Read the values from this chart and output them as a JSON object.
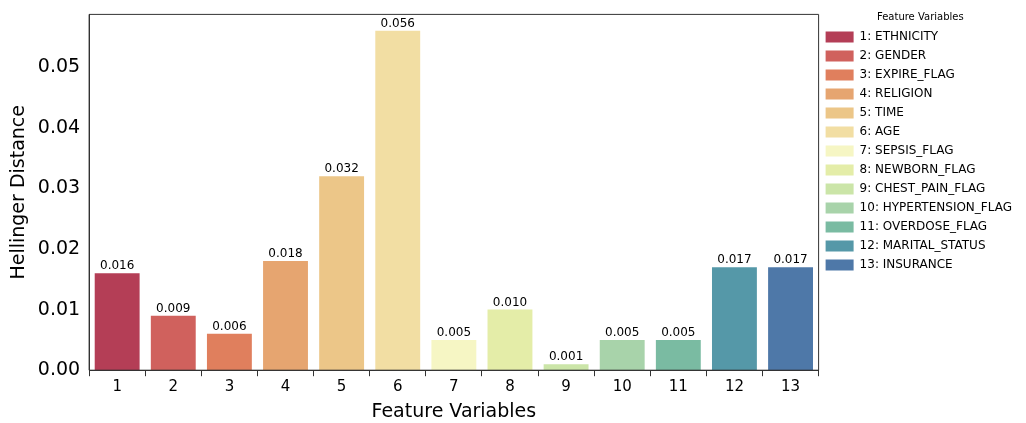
{
  "chart_data": {
    "type": "bar",
    "xlabel": "Feature Variables",
    "ylabel": "Hellinger Distance",
    "legend_title": "Feature Variables",
    "categories": [
      "1",
      "2",
      "3",
      "4",
      "5",
      "6",
      "7",
      "8",
      "9",
      "10",
      "11",
      "12",
      "13"
    ],
    "series": [
      {
        "name": "1: ETHNICITY",
        "color": "#b43e56",
        "values": [
          0.016,
          null,
          null,
          null,
          null,
          null,
          null,
          null,
          null,
          null,
          null,
          null,
          null
        ]
      },
      {
        "name": "2: GENDER",
        "color": "#d0615d",
        "values": [
          null,
          0.009,
          null,
          null,
          null,
          null,
          null,
          null,
          null,
          null,
          null,
          null,
          null
        ]
      },
      {
        "name": "3: EXPIRE_FLAG",
        "color": "#e07f5d",
        "values": [
          null,
          null,
          0.006,
          null,
          null,
          null,
          null,
          null,
          null,
          null,
          null,
          null,
          null
        ]
      },
      {
        "name": "4: RELIGION",
        "color": "#e6a570",
        "values": [
          null,
          null,
          null,
          0.018,
          null,
          null,
          null,
          null,
          null,
          null,
          null,
          null,
          null
        ]
      },
      {
        "name": "5: TIME",
        "color": "#ecc688",
        "values": [
          null,
          null,
          null,
          null,
          0.032,
          null,
          null,
          null,
          null,
          null,
          null,
          null,
          null
        ]
      },
      {
        "name": "6: AGE",
        "color": "#f2dea3",
        "values": [
          null,
          null,
          null,
          null,
          null,
          0.056,
          null,
          null,
          null,
          null,
          null,
          null,
          null
        ]
      },
      {
        "name": "7: SEPSIS_FLAG",
        "color": "#f6f6c4",
        "values": [
          null,
          null,
          null,
          null,
          null,
          null,
          0.005,
          null,
          null,
          null,
          null,
          null,
          null
        ]
      },
      {
        "name": "8: NEWBORN_FLAG",
        "color": "#e4eda8",
        "values": [
          null,
          null,
          null,
          null,
          null,
          null,
          null,
          0.01,
          null,
          null,
          null,
          null,
          null
        ],
        "value_labels": [
          null,
          null,
          null,
          null,
          null,
          null,
          null,
          "0.010",
          null,
          null,
          null,
          null,
          null
        ]
      },
      {
        "name": "9: CHEST_PAIN_FLAG",
        "color": "#cbe5a8",
        "values": [
          null,
          null,
          null,
          null,
          null,
          null,
          null,
          null,
          0.001,
          null,
          null,
          null,
          null
        ]
      },
      {
        "name": "10: HYPERTENSION_FLAG",
        "color": "#a8d3aa",
        "values": [
          null,
          null,
          null,
          null,
          null,
          null,
          null,
          null,
          null,
          0.005,
          null,
          null,
          null
        ]
      },
      {
        "name": "11: OVERDOSE_FLAG",
        "color": "#7abba2",
        "values": [
          null,
          null,
          null,
          null,
          null,
          null,
          null,
          null,
          null,
          null,
          0.005,
          null,
          null
        ]
      },
      {
        "name": "12: MARITAL_STATUS",
        "color": "#5598a8",
        "values": [
          null,
          null,
          null,
          null,
          null,
          null,
          null,
          null,
          null,
          null,
          null,
          0.017,
          null
        ]
      },
      {
        "name": "13: INSURANCE",
        "color": "#4e78a8",
        "values": [
          null,
          null,
          null,
          null,
          null,
          null,
          null,
          null,
          null,
          null,
          null,
          null,
          0.017
        ]
      }
    ],
    "ylim": [
      0,
      0.0587
    ],
    "yticks": [
      {
        "value": 0,
        "label": "0.00"
      },
      {
        "value": 0.01,
        "label": "0.01"
      },
      {
        "value": 0.02,
        "label": "0.02"
      },
      {
        "value": 0.03,
        "label": "0.03"
      },
      {
        "value": 0.04,
        "label": "0.04"
      },
      {
        "value": 0.05,
        "label": "0.05"
      }
    ],
    "grid": false,
    "legend": "top right",
    "data_labels": true
  }
}
